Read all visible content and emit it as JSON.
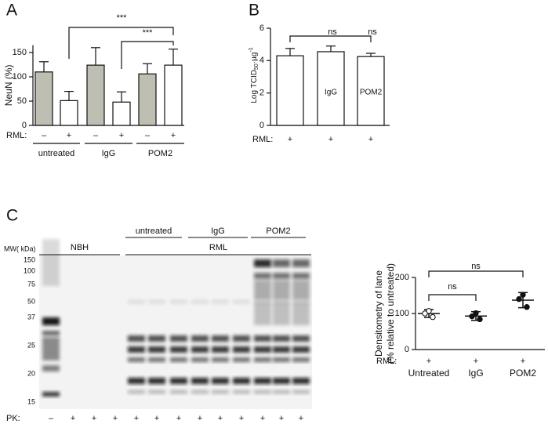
{
  "chart_data": [
    {
      "type": "bar",
      "panel": "A",
      "y_label": "NeuN (%)",
      "row_label": "RML:",
      "categories": [
        "–",
        "+",
        "–",
        "+",
        "–",
        "+"
      ],
      "values": [
        110,
        51,
        124,
        48,
        106,
        124
      ],
      "errors": [
        21,
        19,
        36,
        21,
        21,
        33
      ],
      "colors": [
        "#bfbeb3",
        "#ffffff",
        "#bfbeb3",
        "#ffffff",
        "#bfbeb3",
        "#ffffff"
      ],
      "groups": [
        "untreated",
        "IgG",
        "POM2"
      ],
      "annotations": [
        "***",
        "***"
      ],
      "ylim": [
        0,
        165
      ],
      "yticks": [
        0,
        50,
        100,
        150
      ]
    },
    {
      "type": "bar",
      "panel": "B",
      "y_label": [
        "Log TCID",
        "50",
        "·µg",
        "-1"
      ],
      "row_label": "RML:",
      "categories": [
        "+",
        "+",
        "+"
      ],
      "values": [
        4.3,
        4.55,
        4.25
      ],
      "errors": [
        0.45,
        0.35,
        0.2
      ],
      "colors": [
        "#ffffff",
        "#ffffff",
        "#ffffff"
      ],
      "bar_labels": [
        null,
        "IgG",
        "POM2"
      ],
      "annotations": [
        "ns",
        "ns"
      ],
      "ylim": [
        0,
        6
      ],
      "yticks": [
        0,
        2,
        4,
        6
      ]
    },
    {
      "type": "scatter",
      "y_label": [
        "Densitometry of lane",
        "(% relative to  untreated)"
      ],
      "row_label": "RML:",
      "categories": [
        "Untreated",
        "IgG",
        "POM2"
      ],
      "treatment": [
        "+",
        "+",
        "+"
      ],
      "values": [
        [
          107,
          100,
          90
        ],
        [
          101,
          92,
          84
        ],
        [
          152,
          140,
          118
        ]
      ],
      "means": [
        100,
        93,
        137
      ],
      "errors": [
        11,
        12,
        21
      ],
      "marker_fills": [
        "#ffffff",
        "#111111",
        "#111111"
      ],
      "annotations": [
        "ns",
        "ns"
      ],
      "ylim": [
        0,
        200
      ],
      "yticks": [
        0,
        100,
        200
      ]
    }
  ],
  "blot": {
    "panel": "C",
    "mw_label": "MW( kDa)",
    "markers": [
      150,
      100,
      75,
      50,
      37,
      25,
      20,
      15
    ],
    "groups": [
      "untreated",
      "IgG",
      "POM2"
    ],
    "samples": [
      "NBH",
      "RML"
    ],
    "row_label": "PK:",
    "lanes": [
      "–",
      "+",
      "+",
      "+",
      "+",
      "+",
      "+",
      "+",
      "+",
      "+",
      "+",
      "+",
      "+"
    ]
  }
}
